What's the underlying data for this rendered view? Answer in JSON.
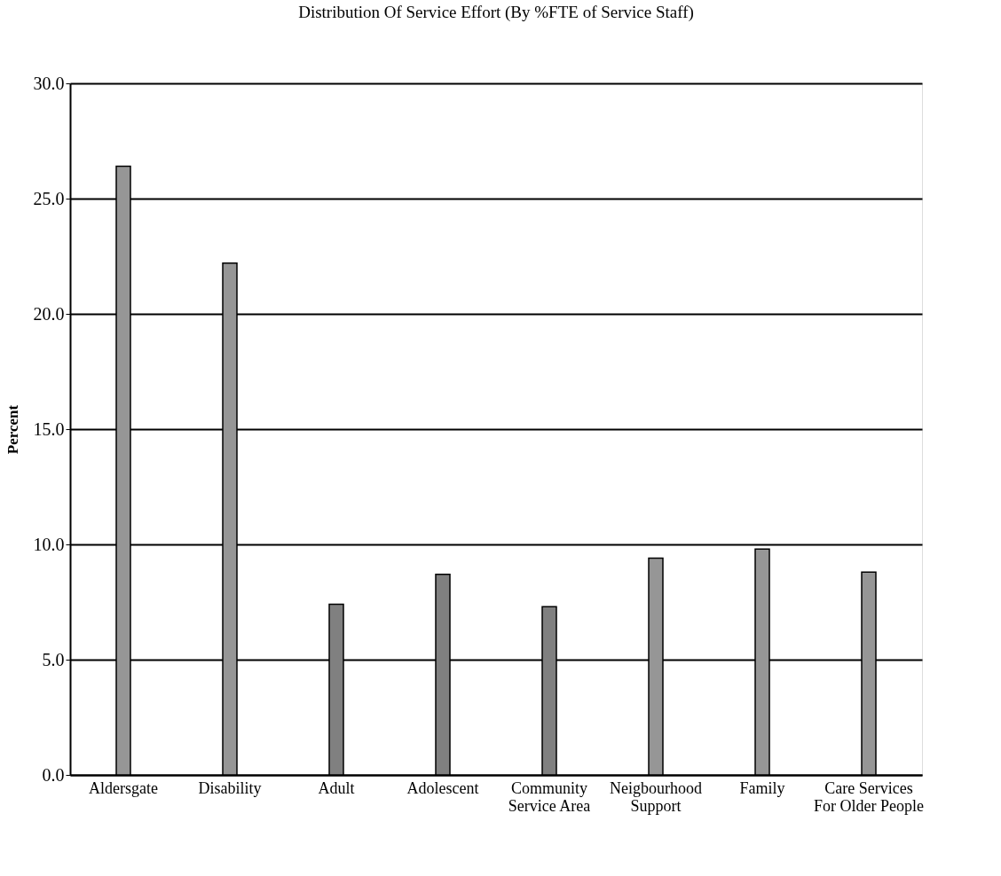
{
  "chart_data": {
    "type": "bar",
    "title": "Distribution Of Service Effort (By %FTE of Service Staff)",
    "ylabel": "Percent",
    "categories": [
      "Aldersgate",
      "Disability",
      "Adult",
      "Adolescent",
      "Community\nService Area",
      "Neigbourhood\nSupport",
      "Family",
      "Care Services\nFor Older People"
    ],
    "values": [
      26.4,
      22.2,
      7.4,
      8.7,
      7.3,
      9.4,
      9.8,
      8.8
    ],
    "colors": [
      "#969696",
      "#969696",
      "#808080",
      "#808080",
      "#808080",
      "#969696",
      "#969696",
      "#969696"
    ],
    "ylim": [
      0,
      30
    ],
    "yticks": [
      {
        "value": 0,
        "label": "0.0"
      },
      {
        "value": 5,
        "label": "5.0"
      },
      {
        "value": 10,
        "label": "10.0"
      },
      {
        "value": 15,
        "label": "15.0"
      },
      {
        "value": 20,
        "label": "20.0"
      },
      {
        "value": 25,
        "label": "25.0"
      },
      {
        "value": 30,
        "label": "30.0"
      }
    ],
    "grid": "y"
  }
}
